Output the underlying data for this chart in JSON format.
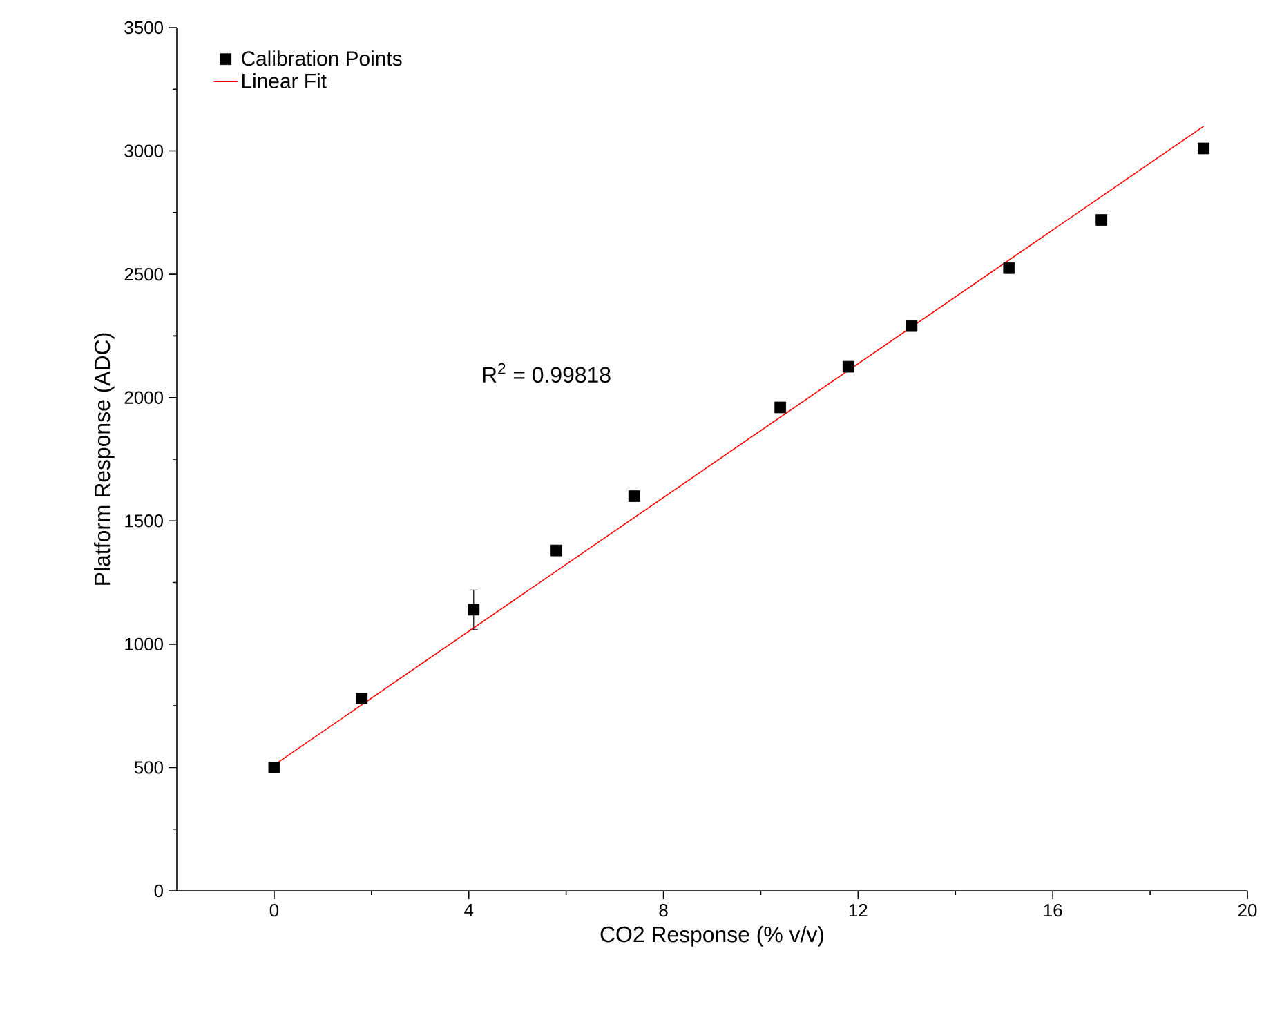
{
  "chart_data": {
    "type": "scatter",
    "xlabel": "CO2 Response (% v/v)",
    "ylabel": "Platform Response (ADC)",
    "xlim": [
      -2,
      20
    ],
    "xticks": [
      0,
      4,
      8,
      12,
      16,
      20
    ],
    "ylim": [
      0,
      3500
    ],
    "yticks": [
      0,
      500,
      1000,
      1500,
      2000,
      2500,
      3000,
      3500
    ],
    "legend": "top left",
    "grid": false,
    "annotations": [
      "R$^{2}$ = 0.99818"
    ],
    "series": [
      {
        "name": "Calibration Points",
        "marker": "square",
        "color": "#000000",
        "x": [
          0,
          1.8,
          4.1,
          5.8,
          7.4,
          10.4,
          11.8,
          13.1,
          15.1,
          17.0,
          19.1
        ],
        "values": [
          500,
          780,
          1140,
          1380,
          1600,
          1960,
          2125,
          2290,
          2525,
          2720,
          3010
        ],
        "errors": [
          null,
          null,
          80,
          null,
          null,
          null,
          null,
          null,
          null,
          null,
          null
        ]
      },
      {
        "name": "Linear Fit",
        "type": "line",
        "marker": "none",
        "line_style": "solid",
        "color": "#ff0000",
        "x": [
          0,
          19.1
        ],
        "values": [
          510,
          3100
        ]
      }
    ]
  }
}
